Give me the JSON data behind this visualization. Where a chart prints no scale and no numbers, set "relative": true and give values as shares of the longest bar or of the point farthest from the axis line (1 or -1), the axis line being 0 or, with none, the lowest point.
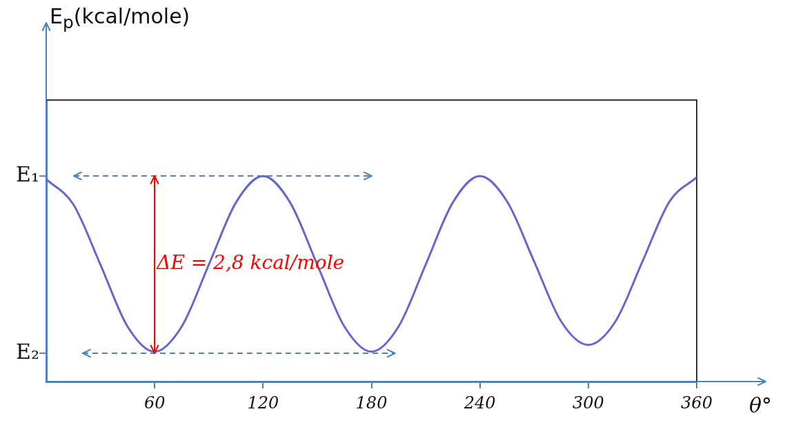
{
  "chart_data": {
    "type": "line",
    "xlabel": "θ°",
    "relative": true,
    "x": [
      0,
      15,
      30,
      45,
      60,
      75,
      90,
      105,
      120,
      135,
      150,
      165,
      180,
      195,
      210,
      225,
      240,
      255,
      270,
      285,
      300,
      315,
      330,
      345,
      360
    ],
    "series": [
      {
        "color": "#6666cc",
        "values": [
          0.985,
          0.862,
          0.569,
          0.268,
          0.145,
          0.268,
          0.569,
          0.871,
          1,
          0.871,
          0.569,
          0.268,
          0.145,
          0.268,
          0.569,
          0.871,
          1,
          0.877,
          0.585,
          0.292,
          0.178,
          0.292,
          0.585,
          0.877,
          0.994
        ]
      }
    ],
    "annotations": [
      "E$_{p}$(kcal/mole)",
      "ΔE = 2,8 kcal/mole"
    ],
    "ref_lines": [
      {
        "axis": "y",
        "value": 1,
        "label": "E₁",
        "color": "#4f81bd"
      },
      {
        "axis": "y",
        "value": 0.138,
        "label": "E₂",
        "color": "#4f81bd"
      },
      {
        "axis": "x",
        "value": 60,
        "color": "#ff0000"
      }
    ],
    "xlim": [
      0,
      360
    ],
    "xticks": [
      60,
      120,
      180,
      240,
      300,
      360
    ],
    "grid": false,
    "legend": false,
    "marker": "none",
    "line_style": "solid"
  }
}
